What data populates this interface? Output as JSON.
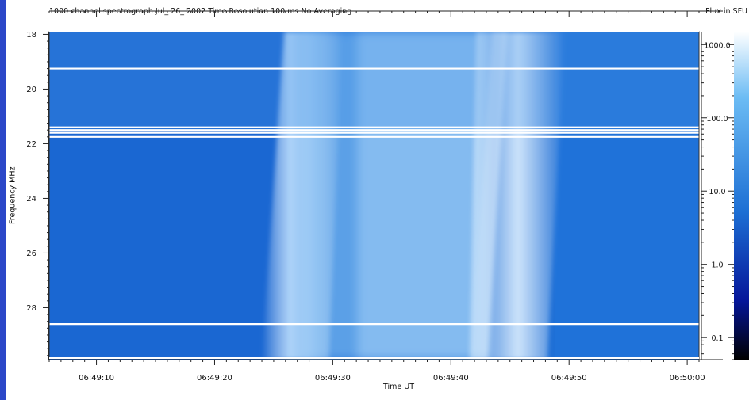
{
  "chart_data": {
    "type": "heatmap",
    "title": "1000 channel spectrograph   Jul_ 26_ 2002   Time Resolution   100 ms      No  Averaging",
    "xlabel": "Time UT",
    "ylabel": "Frequency MHz",
    "x_range": [
      "06:49:06",
      "06:50:01"
    ],
    "x_ticks": [
      "06:49:10",
      "06:49:20",
      "06:49:30",
      "06:49:40",
      "06:49:50",
      "06:50:00"
    ],
    "y_range": [
      17.9,
      29.9
    ],
    "y_ticks": [
      18,
      20,
      22,
      24,
      26,
      28
    ],
    "colorbar": {
      "label": "Flux in SFU",
      "scale": "log",
      "range": [
        0.05,
        1500
      ],
      "ticks": [
        "1000.0",
        "100.0",
        "10.0",
        "1.0",
        "0.1"
      ],
      "colors": [
        "#000000",
        "#05169a",
        "#1d6fd4",
        "#6cbcf4",
        "#ffffff"
      ]
    },
    "bursts": [
      {
        "start": "06:49:25",
        "end": "06:49:32",
        "freq_range": [
          17.9,
          29.9
        ]
      },
      {
        "start": "06:49:42",
        "end": "06:49:48",
        "freq_range": [
          17.9,
          29.9
        ]
      }
    ],
    "interference_lines_MHz": [
      19.25,
      21.4,
      21.5,
      21.6,
      21.75,
      28.6
    ]
  }
}
